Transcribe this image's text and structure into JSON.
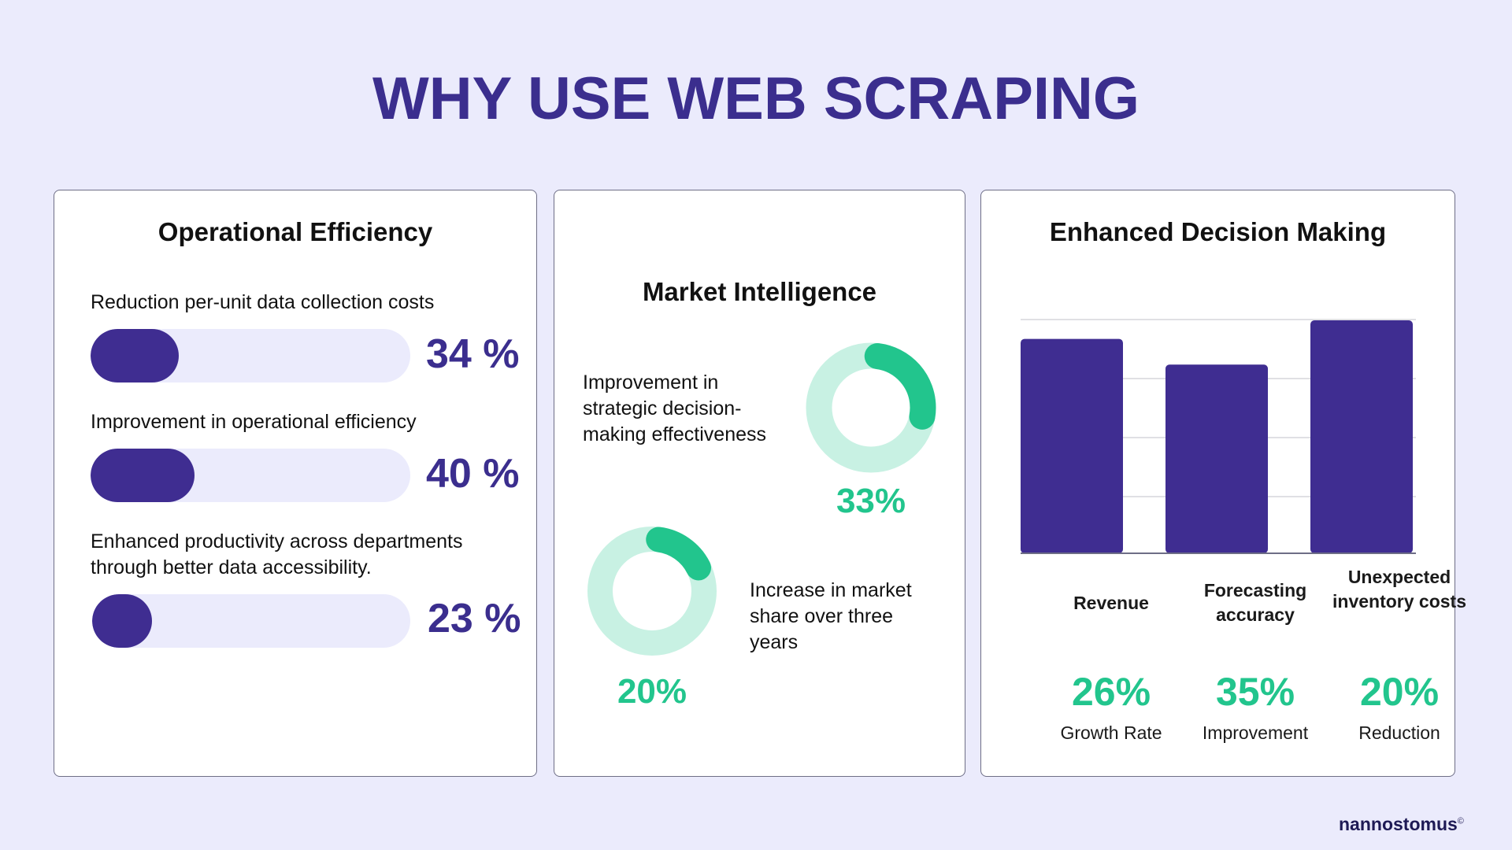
{
  "title": "WHY USE WEB SCRAPING",
  "brand": {
    "name": "nannostomus",
    "mark": "©"
  },
  "colors": {
    "purple": "#3f2d91",
    "green": "#22c58d",
    "light_green": "#c8f1e3",
    "track": "#ebebfc"
  },
  "operational": {
    "title": "Operational Efficiency",
    "metrics": [
      {
        "label": "Reduction per-unit data collection costs",
        "value": 34,
        "display": "34 %"
      },
      {
        "label": "Improvement in operational efficiency",
        "value": 40,
        "display": "40 %"
      },
      {
        "label": "Enhanced productivity across departments through better data accessibility.",
        "value": 23,
        "display": "23 %"
      }
    ]
  },
  "market": {
    "title": "Market Intelligence",
    "items": [
      {
        "label": "Improvement in strategic decision-making effectiveness",
        "value": 33,
        "display": "33%"
      },
      {
        "label": "Increase in market share over three years",
        "value": 20,
        "display": "20%"
      }
    ]
  },
  "decision": {
    "title": "Enhanced Decision Making",
    "chart_data": {
      "type": "bar",
      "categories": [
        "Revenue",
        "Forecasting accuracy",
        "Unexpected inventory costs"
      ],
      "values": [
        26,
        35,
        20
      ],
      "bar_heights_relative": [
        0.92,
        0.81,
        1.0
      ],
      "value_labels": [
        "26%",
        "35%",
        "20%"
      ],
      "sub_labels": [
        "Growth Rate",
        "Improvement",
        "Reduction"
      ],
      "grid": true
    }
  }
}
